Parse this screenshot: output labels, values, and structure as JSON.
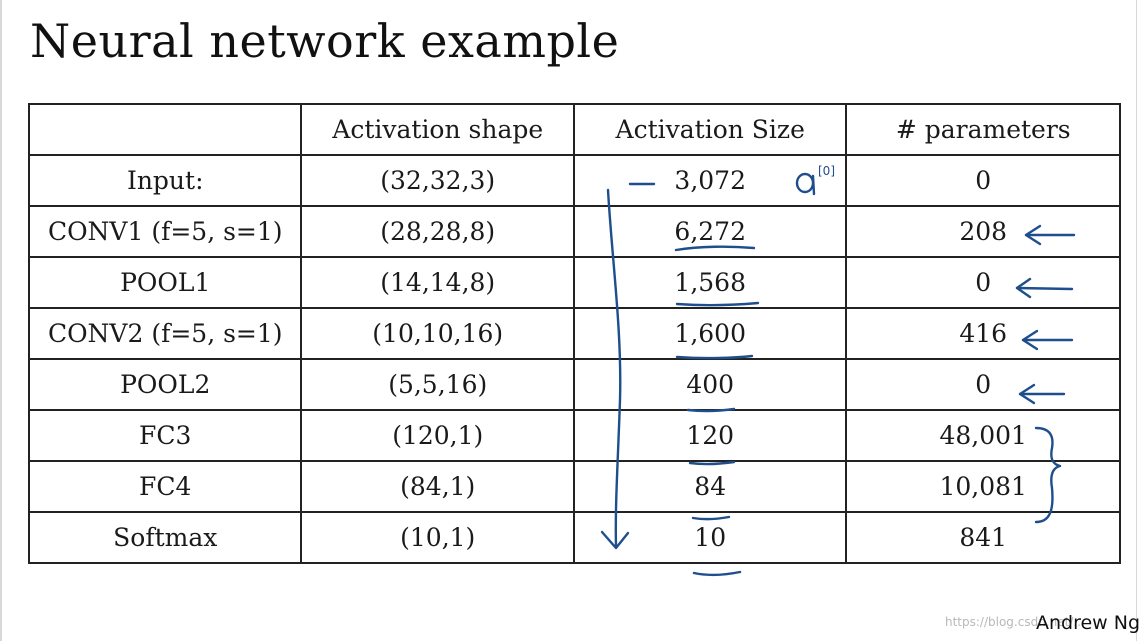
{
  "title": "Neural network example",
  "table": {
    "headers": [
      "",
      "Activation shape",
      "Activation Size",
      "# parameters"
    ],
    "rows": [
      {
        "layer": "Input:",
        "shape": "(32,32,3)",
        "size": "3,072",
        "params": "0"
      },
      {
        "layer": "CONV1 (f=5, s=1)",
        "shape": "(28,28,8)",
        "size": "6,272",
        "params": "208"
      },
      {
        "layer": "POOL1",
        "shape": "(14,14,8)",
        "size": "1,568",
        "params": "0"
      },
      {
        "layer": "CONV2  (f=5, s=1)",
        "shape": "(10,10,16)",
        "size": "1,600",
        "params": "416"
      },
      {
        "layer": "POOL2",
        "shape": "(5,5,16)",
        "size": "400",
        "params": "0"
      },
      {
        "layer": "FC3",
        "shape": "(120,1)",
        "size": "120",
        "params": "48,001"
      },
      {
        "layer": "FC4",
        "shape": "(84,1)",
        "size": "84",
        "params": "10,081"
      },
      {
        "layer": "Softmax",
        "shape": "(10,1)",
        "size": "10",
        "params": "841"
      }
    ]
  },
  "annotations": {
    "input_activation_label": "a[0]"
  },
  "colors": {
    "ink": "#1f4e8c",
    "text": "#1a1a1a",
    "border": "#222222"
  },
  "footer": {
    "author": "Andrew Ng",
    "watermark": "https://blog.csdn.net/..."
  }
}
